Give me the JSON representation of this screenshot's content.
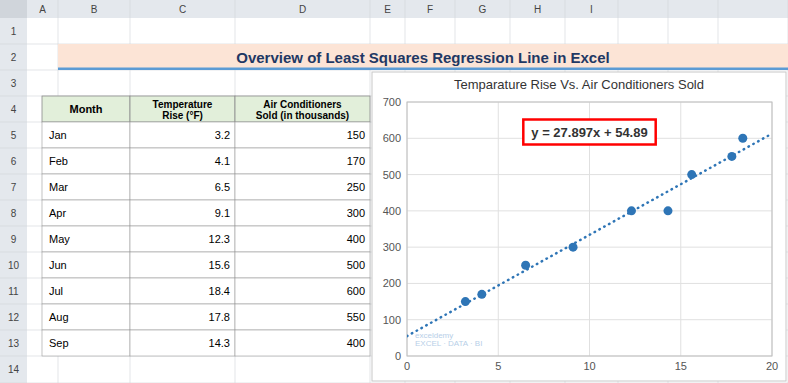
{
  "page": {
    "title": "Overview of Least Squares Regression Line in Excel",
    "column_letters": [
      "A",
      "B",
      "C",
      "D",
      "E",
      "F",
      "G",
      "H",
      "I"
    ],
    "row_numbers": [
      1,
      2,
      3,
      4,
      5,
      6,
      7,
      8,
      9,
      10,
      11,
      12,
      13,
      14
    ],
    "table": {
      "headers": [
        "Month",
        "Temperature\nRise (°F)",
        "Air Conditioners\nSold (in thousands)"
      ],
      "months": [
        "Jan",
        "Feb",
        "Mar",
        "Apr",
        "May",
        "Jun",
        "Jul",
        "Aug",
        "Sep"
      ]
    }
  },
  "chart_data": {
    "type": "scatter",
    "title": "Temparature Rise Vs. Air Conditioners Sold",
    "x": [
      3.2,
      4.1,
      6.5,
      9.1,
      12.3,
      15.6,
      18.4,
      17.8,
      14.3
    ],
    "series": [
      {
        "type": "scatter",
        "color": "#2e75b6",
        "marker": "circle",
        "values": [
          150,
          170,
          250,
          300,
          400,
          500,
          600,
          550,
          400
        ]
      },
      {
        "type": "line",
        "color": "#2e75b6",
        "line_style": "dotted",
        "x": [
          0,
          20
        ],
        "values": [
          54.89,
          612.83
        ]
      }
    ],
    "xlim": [
      0,
      20
    ],
    "ylim": [
      0,
      700
    ],
    "xticks": [
      0,
      5,
      10,
      15,
      20
    ],
    "yticks": [
      0,
      100,
      200,
      300,
      400,
      500,
      600,
      700
    ],
    "grid": true,
    "annotations": [
      {
        "text": "y = 27.897x + 54.89"
      },
      {
        "text": "exceldemy\nEXCEL · DATA · BI"
      }
    ]
  }
}
